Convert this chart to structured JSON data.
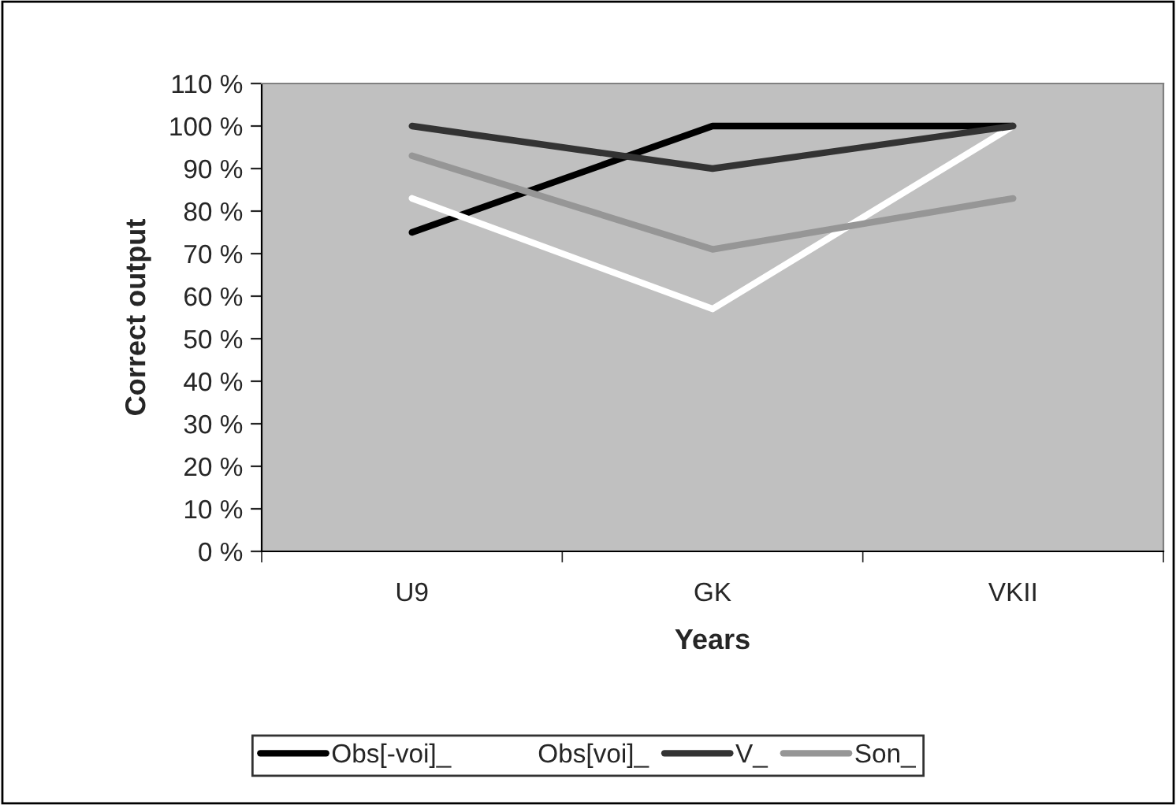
{
  "chart_data": {
    "type": "line",
    "xlabel": "Years",
    "ylabel": "Correct output",
    "categories": [
      "U9",
      "GK",
      "VKII"
    ],
    "series": [
      {
        "name": "Obs[-voi]_",
        "color": "#000000",
        "values": [
          75,
          100,
          100
        ]
      },
      {
        "name": "Obs[voi]_",
        "color": "#ffffff",
        "values": [
          83,
          57,
          100
        ]
      },
      {
        "name": "V_",
        "color": "#333333",
        "values": [
          100,
          90,
          100
        ]
      },
      {
        "name": "Son_",
        "color": "#969696",
        "values": [
          93,
          71,
          83
        ]
      }
    ],
    "ylim": [
      0,
      110
    ],
    "yticks": [
      {
        "value": 0,
        "label": "0 %"
      },
      {
        "value": 10,
        "label": "10 %"
      },
      {
        "value": 20,
        "label": "20 %"
      },
      {
        "value": 30,
        "label": "30 %"
      },
      {
        "value": 40,
        "label": "40 %"
      },
      {
        "value": 50,
        "label": "50 %"
      },
      {
        "value": 60,
        "label": "60 %"
      },
      {
        "value": 70,
        "label": "70 %"
      },
      {
        "value": 80,
        "label": "80 %"
      },
      {
        "value": 90,
        "label": "90 %"
      },
      {
        "value": 100,
        "label": "100 %"
      },
      {
        "value": 110,
        "label": "110 %"
      }
    ],
    "grid": false,
    "legend": "bottom",
    "marker": "none",
    "line_style": "solid"
  }
}
